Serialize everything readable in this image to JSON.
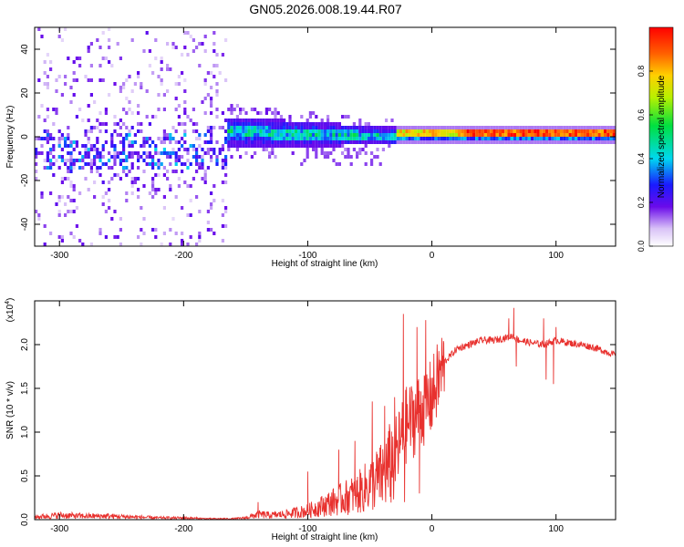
{
  "figure_title": "GN05.2026.008.19.44.R07",
  "chart_data": [
    {
      "type": "heatmap",
      "title": "GN05.2026.008.19.44.R07",
      "xlabel": "Height of straight line (km)",
      "ylabel": "Frequency (Hz)",
      "xlim": [
        -320,
        148
      ],
      "ylim": [
        -50,
        50
      ],
      "xticks": [
        -300,
        -200,
        -100,
        0,
        100
      ],
      "xtick_labels": [
        "-300",
        "-200",
        "-100",
        "0",
        "100"
      ],
      "yticks": [
        -40,
        -20,
        0,
        20,
        40
      ],
      "ytick_labels": [
        "-40",
        "-20",
        "0",
        "20",
        "40"
      ],
      "colorbar": {
        "label": "Normalized spectral amplitude",
        "range": [
          0,
          1
        ],
        "ticks": [
          0.0,
          0.2,
          0.4,
          0.6,
          0.8
        ],
        "tick_labels": [
          "0.0",
          "0.2",
          "0.4",
          "0.6",
          "0.8"
        ],
        "colormap": "purple-blue-cyan-green-yellow-red"
      },
      "regions": [
        {
          "x_range": [
            -320,
            -165
          ],
          "center_freq_hz": -5,
          "freq_spread_hz": 30,
          "amplitude": 0.2,
          "description": "diffuse noisy spectrum"
        },
        {
          "x_range": [
            -165,
            -30
          ],
          "center_freq_hz": 2,
          "freq_spread_hz": 6,
          "amplitude": 0.45,
          "description": "concentrated band descending toward 0 Hz"
        },
        {
          "x_range": [
            -30,
            148
          ],
          "center_freq_hz": 2,
          "freq_spread_hz": 2,
          "amplitude": 0.95,
          "description": "narrow high-amplitude line"
        }
      ]
    },
    {
      "type": "line",
      "xlabel": "Height of straight line (km)",
      "ylabel": "SNR (10 * v/v)",
      "y_multiplier_label": "(x10",
      "y_multiplier_exp": "4",
      "y_multiplier_close": ")",
      "xlim": [
        -320,
        148
      ],
      "ylim": [
        0,
        2.5
      ],
      "xticks": [
        -300,
        -200,
        -100,
        0,
        100
      ],
      "xtick_labels": [
        "-300",
        "-200",
        "-100",
        "0",
        "100"
      ],
      "yticks": [
        0.0,
        0.5,
        1.0,
        1.5,
        2.0
      ],
      "ytick_labels": [
        "0.0",
        "0.5",
        "1.0",
        "1.5",
        "2.0"
      ],
      "color": "#e8312e",
      "series": [
        {
          "name": "SNR",
          "x": [
            -320,
            -300,
            -280,
            -260,
            -240,
            -220,
            -200,
            -180,
            -160,
            -150,
            -140,
            -130,
            -120,
            -110,
            -100,
            -90,
            -80,
            -70,
            -60,
            -50,
            -40,
            -35,
            -30,
            -25,
            -20,
            -15,
            -10,
            -5,
            0,
            5,
            10,
            20,
            30,
            40,
            50,
            60,
            65,
            70,
            80,
            90,
            100,
            110,
            120,
            130,
            140,
            148
          ],
          "values": [
            0.03,
            0.05,
            0.04,
            0.04,
            0.03,
            0.02,
            0.02,
            0.01,
            0.01,
            0.02,
            0.06,
            0.05,
            0.06,
            0.08,
            0.1,
            0.15,
            0.2,
            0.25,
            0.3,
            0.4,
            0.5,
            0.6,
            0.7,
            0.9,
            1.1,
            1.15,
            1.25,
            1.3,
            1.4,
            1.6,
            1.8,
            1.95,
            2.0,
            2.05,
            2.05,
            2.08,
            2.1,
            2.05,
            2.02,
            2.0,
            2.05,
            2.02,
            2.0,
            1.97,
            1.92,
            1.88
          ],
          "spikes": [
            {
              "x": -140,
              "y": 0.2
            },
            {
              "x": -100,
              "y": 0.55
            },
            {
              "x": -75,
              "y": 0.8
            },
            {
              "x": -62,
              "y": 0.9
            },
            {
              "x": -48,
              "y": 1.35
            },
            {
              "x": -38,
              "y": 1.3
            },
            {
              "x": -30,
              "y": 1.4
            },
            {
              "x": -23,
              "y": 2.35
            },
            {
              "x": -12,
              "y": 2.2
            },
            {
              "x": -5,
              "y": 2.28
            },
            {
              "x": 62,
              "y": 2.3
            },
            {
              "x": 66,
              "y": 2.42
            },
            {
              "x": 90,
              "y": 2.3
            },
            {
              "x": 100,
              "y": 2.2
            }
          ],
          "dips": [
            {
              "x": -22,
              "y": 0.2
            },
            {
              "x": -10,
              "y": 0.3
            },
            {
              "x": 68,
              "y": 1.75
            },
            {
              "x": 92,
              "y": 1.6
            },
            {
              "x": 98,
              "y": 1.55
            }
          ]
        }
      ]
    }
  ]
}
